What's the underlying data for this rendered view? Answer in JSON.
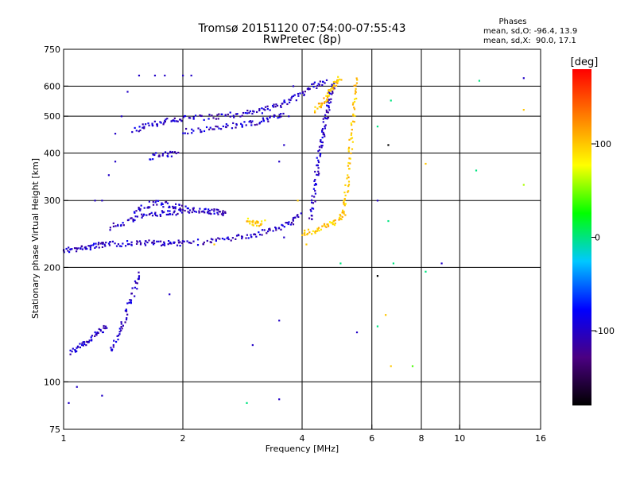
{
  "chart_data": {
    "type": "scatter",
    "title": "Tromsø 20151120 07:54:00-07:55:43",
    "subtitle": "RwPretec (8p)",
    "xlabel": "Frequency [MHz]",
    "ylabel": "Stationary phase Virtual Height [km]",
    "xscale": "log",
    "yscale": "log",
    "xlim": [
      1,
      16
    ],
    "ylim": [
      75,
      750
    ],
    "x_ticks": [
      {
        "v": 1,
        "label": "1"
      },
      {
        "v": 2,
        "label": "2"
      },
      {
        "v": 4,
        "label": "4"
      },
      {
        "v": 6,
        "label": "6"
      },
      {
        "v": 8,
        "label": "8"
      },
      {
        "v": 10,
        "label": "10"
      },
      {
        "v": 16,
        "label": "16"
      }
    ],
    "y_ticks": [
      {
        "v": 75,
        "label": "75"
      },
      {
        "v": 100,
        "label": "100"
      },
      {
        "v": 200,
        "label": "200"
      },
      {
        "v": 300,
        "label": "300"
      },
      {
        "v": 400,
        "label": "400"
      },
      {
        "v": 500,
        "label": "500"
      },
      {
        "v": 600,
        "label": "600"
      },
      {
        "v": 750,
        "label": "750"
      }
    ],
    "grid_x": [
      2,
      4,
      6,
      8,
      10
    ],
    "grid_y": [
      100,
      200,
      300,
      400,
      500,
      600
    ],
    "grid": true,
    "stats": {
      "heading": "Phases",
      "line1": "mean, sd,O: -96.4, 13.9",
      "line2": "mean, sd,X:  90.0, 17.1"
    },
    "colorbar": {
      "unit": "[deg]",
      "range": [
        -180,
        180
      ],
      "ticks": [
        {
          "v": 100,
          "label": "100"
        },
        {
          "v": 0,
          "label": "0"
        },
        {
          "v": -100,
          "label": "-100"
        }
      ],
      "colors": [
        "#000000",
        "#4b0082",
        "#0000ff",
        "#00c8ff",
        "#00ff00",
        "#ffff00",
        "#ff8000",
        "#ff0000"
      ]
    },
    "traces": [
      {
        "name": "",
        "phase": -100,
        "pts": [
          [
            1.0,
            222
          ],
          [
            1.05,
            223
          ],
          [
            1.1,
            224
          ],
          [
            1.15,
            226
          ],
          [
            1.2,
            228
          ],
          [
            1.25,
            229
          ],
          [
            1.3,
            230
          ],
          [
            1.4,
            231
          ],
          [
            1.5,
            232
          ],
          [
            1.6,
            232
          ],
          [
            1.7,
            232
          ],
          [
            1.8,
            232
          ],
          [
            1.9,
            232
          ],
          [
            2.0,
            232
          ],
          [
            2.2,
            233
          ],
          [
            2.4,
            235
          ],
          [
            2.6,
            238
          ],
          [
            2.8,
            240
          ],
          [
            3.0,
            243
          ],
          [
            3.2,
            247
          ],
          [
            3.4,
            252
          ],
          [
            3.6,
            258
          ],
          [
            3.8,
            265
          ],
          [
            4.0,
            275
          ]
        ]
      },
      {
        "name": "",
        "phase": -100,
        "pts": [
          [
            1.3,
            255
          ],
          [
            1.4,
            262
          ],
          [
            1.5,
            268
          ],
          [
            1.6,
            273
          ],
          [
            1.7,
            276
          ],
          [
            1.8,
            278
          ],
          [
            1.9,
            279
          ],
          [
            2.0,
            280
          ],
          [
            2.2,
            281
          ],
          [
            2.4,
            281
          ],
          [
            2.6,
            280
          ]
        ]
      },
      {
        "name": "",
        "phase": -100,
        "pts": [
          [
            1.5,
            280
          ],
          [
            1.6,
            290
          ],
          [
            1.7,
            295
          ],
          [
            1.8,
            293
          ],
          [
            1.9,
            290
          ],
          [
            2.0,
            288
          ],
          [
            2.2,
            283
          ],
          [
            2.4,
            280
          ],
          [
            2.6,
            278
          ]
        ]
      },
      {
        "name": "",
        "phase": -100,
        "pts": [
          [
            1.5,
            460
          ],
          [
            1.6,
            470
          ],
          [
            1.7,
            478
          ],
          [
            1.8,
            485
          ],
          [
            1.9,
            490
          ],
          [
            2.0,
            492
          ],
          [
            2.2,
            495
          ],
          [
            2.4,
            498
          ],
          [
            2.6,
            502
          ],
          [
            2.8,
            507
          ],
          [
            3.0,
            512
          ],
          [
            3.2,
            520
          ],
          [
            3.4,
            530
          ],
          [
            3.6,
            542
          ],
          [
            3.8,
            556
          ],
          [
            4.0,
            572
          ],
          [
            4.2,
            590
          ],
          [
            4.4,
            610
          ],
          [
            4.6,
            625
          ]
        ]
      },
      {
        "name": "",
        "phase": -100,
        "pts": [
          [
            2.0,
            455
          ],
          [
            2.2,
            458
          ],
          [
            2.4,
            465
          ],
          [
            2.6,
            470
          ],
          [
            2.8,
            475
          ],
          [
            3.0,
            480
          ],
          [
            3.2,
            487
          ],
          [
            3.4,
            495
          ],
          [
            3.6,
            505
          ]
        ]
      },
      {
        "name": "",
        "phase": -100,
        "pts": [
          [
            1.65,
            390
          ],
          [
            1.75,
            395
          ],
          [
            1.85,
            398
          ],
          [
            1.95,
            395
          ]
        ]
      },
      {
        "name": "",
        "phase": -100,
        "pts": [
          [
            1.04,
            120
          ],
          [
            1.08,
            122
          ],
          [
            1.12,
            125
          ],
          [
            1.16,
            128
          ],
          [
            1.2,
            132
          ],
          [
            1.24,
            136
          ],
          [
            1.28,
            140
          ]
        ]
      },
      {
        "name": "",
        "phase": -100,
        "pts": [
          [
            1.32,
            120
          ],
          [
            1.36,
            130
          ],
          [
            1.4,
            140
          ],
          [
            1.44,
            152
          ],
          [
            1.48,
            165
          ],
          [
            1.52,
            180
          ],
          [
            1.55,
            195
          ]
        ]
      },
      {
        "name": "",
        "phase": -100,
        "pts": [
          [
            4.2,
            265
          ],
          [
            4.25,
            290
          ],
          [
            4.3,
            320
          ],
          [
            4.35,
            350
          ],
          [
            4.4,
            380
          ],
          [
            4.45,
            410
          ],
          [
            4.5,
            440
          ],
          [
            4.55,
            470
          ],
          [
            4.6,
            500
          ],
          [
            4.65,
            530
          ],
          [
            4.7,
            560
          ],
          [
            4.75,
            590
          ],
          [
            4.8,
            610
          ]
        ]
      },
      {
        "name": "",
        "phase": 100,
        "pts": [
          [
            4.0,
            245
          ],
          [
            4.2,
            248
          ],
          [
            4.4,
            252
          ],
          [
            4.6,
            258
          ],
          [
            4.8,
            262
          ],
          [
            5.0,
            268
          ],
          [
            5.1,
            280
          ],
          [
            5.15,
            300
          ],
          [
            5.2,
            330
          ],
          [
            5.25,
            370
          ],
          [
            5.3,
            410
          ],
          [
            5.35,
            460
          ],
          [
            5.4,
            520
          ],
          [
            5.45,
            580
          ],
          [
            5.5,
            630
          ]
        ]
      },
      {
        "name": "",
        "phase": 100,
        "pts": [
          [
            4.3,
            520
          ],
          [
            4.5,
            540
          ],
          [
            4.6,
            560
          ],
          [
            4.7,
            580
          ],
          [
            4.8,
            600
          ],
          [
            4.9,
            620
          ],
          [
            5.0,
            630
          ]
        ]
      },
      {
        "name": "",
        "phase": 100,
        "pts": [
          [
            2.9,
            265
          ],
          [
            3.0,
            262
          ],
          [
            3.1,
            260
          ],
          [
            3.2,
            262
          ]
        ]
      }
    ],
    "scatter": [
      [
        1.55,
        640,
        -100
      ],
      [
        1.7,
        640,
        -100
      ],
      [
        1.8,
        640,
        -100
      ],
      [
        2.0,
        640,
        -100
      ],
      [
        2.1,
        640,
        -100
      ],
      [
        1.45,
        580,
        -100
      ],
      [
        1.4,
        500,
        -100
      ],
      [
        1.35,
        450,
        -100
      ],
      [
        1.3,
        350,
        -100
      ],
      [
        1.35,
        380,
        -100
      ],
      [
        1.2,
        300,
        -100
      ],
      [
        1.25,
        300,
        -100
      ],
      [
        1.85,
        170,
        -100
      ],
      [
        3.5,
        145,
        -100
      ],
      [
        3.0,
        125,
        -100
      ],
      [
        3.5,
        90,
        -100
      ],
      [
        2.9,
        88,
        0
      ],
      [
        1.25,
        92,
        -100
      ],
      [
        1.08,
        97,
        -100
      ],
      [
        1.03,
        88,
        -100
      ],
      [
        5.0,
        205,
        0
      ],
      [
        6.8,
        205,
        0
      ],
      [
        9.0,
        205,
        -100
      ],
      [
        8.2,
        195,
        0
      ],
      [
        6.2,
        190,
        -180
      ],
      [
        6.2,
        140,
        0
      ],
      [
        6.5,
        150,
        100
      ],
      [
        6.7,
        110,
        100
      ],
      [
        7.6,
        110,
        40
      ],
      [
        5.5,
        135,
        -100
      ],
      [
        6.2,
        300,
        -100
      ],
      [
        6.6,
        265,
        0
      ],
      [
        6.7,
        550,
        0
      ],
      [
        6.2,
        470,
        0
      ],
      [
        6.6,
        420,
        -180
      ],
      [
        8.2,
        375,
        100
      ],
      [
        11.0,
        360,
        0
      ],
      [
        11.2,
        620,
        0
      ],
      [
        14.5,
        630,
        -100
      ],
      [
        14.5,
        520,
        100
      ],
      [
        14.5,
        330,
        60
      ],
      [
        3.8,
        600,
        -100
      ],
      [
        3.7,
        500,
        -100
      ],
      [
        3.6,
        420,
        -100
      ],
      [
        3.5,
        380,
        -100
      ],
      [
        3.9,
        300,
        100
      ],
      [
        3.8,
        270,
        -100
      ],
      [
        3.6,
        240,
        -100
      ],
      [
        4.1,
        230,
        100
      ],
      [
        2.4,
        230,
        100
      ]
    ]
  }
}
